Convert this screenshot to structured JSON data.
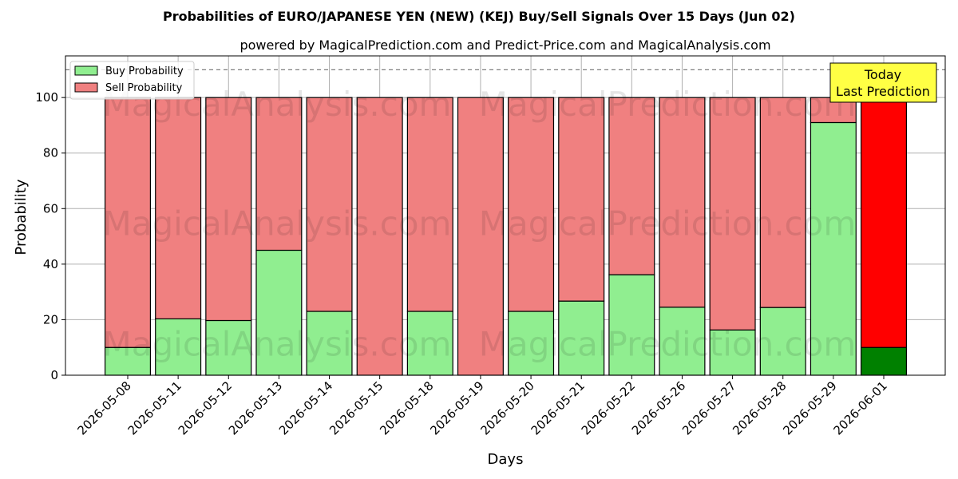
{
  "chart_data": {
    "type": "bar",
    "stacked": true,
    "title": "Probabilities of EURO/JAPANESE YEN (NEW) (KEJ) Buy/Sell Signals Over 15 Days (Jun 02)",
    "subtitle": "powered by MagicalPrediction.com and Predict-Price.com and MagicalAnalysis.com",
    "xlabel": "Days",
    "ylabel": "Probability",
    "ylim": [
      0,
      115
    ],
    "yticks": [
      0,
      20,
      40,
      60,
      80,
      100
    ],
    "reference_line": 110,
    "grid": true,
    "legend_position": "top-left",
    "categories": [
      "2026-05-08",
      "2026-05-11",
      "2026-05-12",
      "2026-05-13",
      "2026-05-14",
      "2026-05-15",
      "2026-05-18",
      "2026-05-19",
      "2026-05-20",
      "2026-05-21",
      "2026-05-22",
      "2026-05-26",
      "2026-05-27",
      "2026-05-28",
      "2026-05-29",
      "2026-06-01"
    ],
    "series": [
      {
        "name": "Buy Probability",
        "color": "#90ee90",
        "values": [
          10,
          20.3,
          19.7,
          45,
          23,
          0,
          23,
          0,
          23,
          26.7,
          36.2,
          24.5,
          16.3,
          24.4,
          91,
          10
        ]
      },
      {
        "name": "Sell Probability",
        "color": "#f08080",
        "values": [
          90,
          79.7,
          80.3,
          55,
          77,
          100,
          77,
          100,
          77,
          73.3,
          63.8,
          75.5,
          83.7,
          75.6,
          9,
          90
        ]
      }
    ],
    "highlight": {
      "index": 15,
      "buy_color": "#008000",
      "sell_color": "#ff0000"
    },
    "annotation": {
      "lines": [
        "Today",
        "Last Prediction"
      ],
      "background": "#ffff44",
      "position": "top-right"
    },
    "watermarks": [
      "MagicalAnalysis.com",
      "MagicalPrediction.com"
    ]
  }
}
